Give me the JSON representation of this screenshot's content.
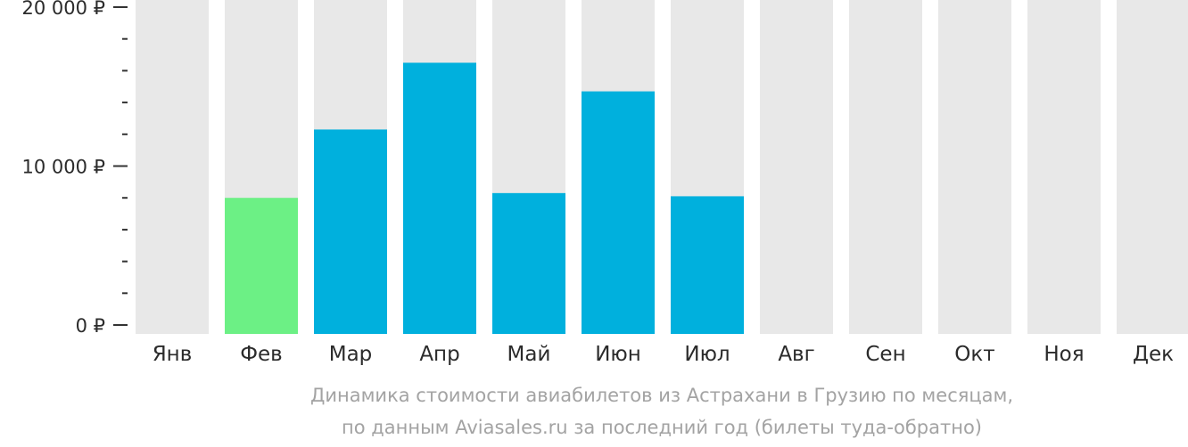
{
  "chart_data": {
    "type": "bar",
    "categories": [
      "Янв",
      "Фев",
      "Мар",
      "Апр",
      "Май",
      "Июн",
      "Июл",
      "Авг",
      "Сен",
      "Окт",
      "Ноя",
      "Дек"
    ],
    "values": [
      null,
      8000,
      12300,
      16500,
      8300,
      14700,
      8100,
      null,
      null,
      null,
      null,
      null
    ],
    "ylim": [
      0,
      20000
    ],
    "yticks": [
      {
        "value": 0,
        "label": "0 ₽"
      },
      {
        "value": 10000,
        "label": "10 000 ₽"
      },
      {
        "value": 20000,
        "label": "20 000 ₽"
      }
    ],
    "minor_tick_step": 2000,
    "grid": false,
    "colors": {
      "background_column": "#e8e8e8",
      "bar_default": "#00b0dd",
      "bar_min": "#6cf085"
    },
    "min_category": "Фев"
  },
  "caption": {
    "line1": "Динамика стоимости авиабилетов из Астрахани в Грузию по месяцам,",
    "line2": "по данным Aviasales.ru за последний год (билеты туда-обратно)"
  }
}
